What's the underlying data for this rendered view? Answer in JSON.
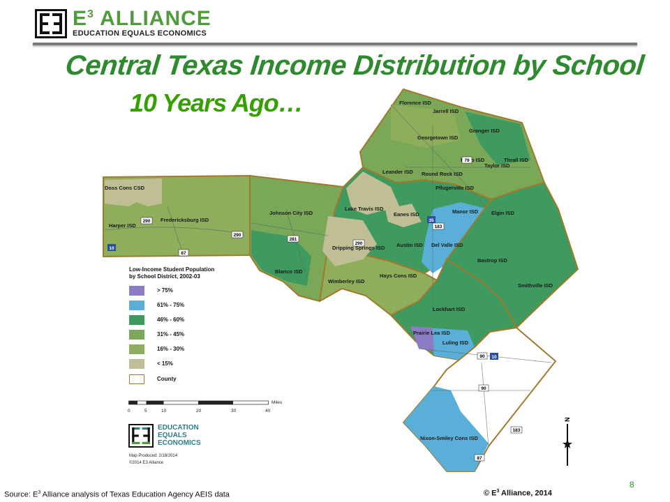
{
  "header": {
    "brand_name": "E3 ALLIANCE",
    "brand_prefix": "E",
    "brand_sup": "3",
    "brand_suffix": " ALLIANCE",
    "tagline": "EDUCATION EQUALS ECONOMICS"
  },
  "slide": {
    "title": "Central Texas Income Distribution by School",
    "subtitle": "10 Years Ago…",
    "page_number": "8"
  },
  "colors": {
    "title": "#2f8a2f",
    "subtitle": "#36a000",
    "over_75": "#8b7cc4",
    "61_75": "#5aafd8",
    "46_60": "#3f9a5f",
    "31_45": "#7aa858",
    "16_30": "#8fae5c",
    "under_15": "#bfbe95",
    "county_border": "#a07a2c"
  },
  "legend": {
    "title_line1": "Low-Income Student Population",
    "title_line2": "by School District, 2002-03",
    "items": [
      {
        "label": "> 75%",
        "color": "#8b7cc4"
      },
      {
        "label": "61% - 75%",
        "color": "#5aafd8"
      },
      {
        "label": "46% - 60%",
        "color": "#3f9a5f"
      },
      {
        "label": "31% - 45%",
        "color": "#7aa858"
      },
      {
        "label": "16% - 30%",
        "color": "#8fae5c"
      },
      {
        "label": "< 15%",
        "color": "#bfbe95"
      },
      {
        "label": "County",
        "color": "#ffffff"
      }
    ],
    "scale_ticks": [
      "0",
      "5",
      "10",
      "20",
      "30",
      "40"
    ],
    "scale_unit": "Miles"
  },
  "map": {
    "districts": [
      "Florence ISD",
      "Jarrell ISD",
      "Granger ISD",
      "Georgetown ISD",
      "Thrall ISD",
      "Hutto ISD",
      "Taylor ISD",
      "Leander ISD",
      "Round Rock ISD",
      "Pflugerville ISD",
      "Doss Cons CSD",
      "Harper ISD",
      "Fredericksburg ISD",
      "Johnson City ISD",
      "Lake Travis ISD",
      "Eanes ISD",
      "Manor ISD",
      "Elgin ISD",
      "Austin ISD",
      "Del Valle ISD",
      "Dripping Springs ISD",
      "Blanco ISD",
      "Bastrop ISD",
      "Wimberley ISD",
      "Hays Cons ISD",
      "Smithville ISD",
      "Lockhart ISD",
      "Prairie Lea ISD",
      "Luling ISD",
      "Nixon-Smiley Cons ISD"
    ],
    "highways": [
      "79",
      "35",
      "183",
      "290",
      "290",
      "281",
      "290",
      "87",
      "10",
      "90",
      "10",
      "90",
      "183",
      "87"
    ]
  },
  "attribution": {
    "eee_line1": "EDUCATION",
    "eee_line2": "EQUALS",
    "eee_line3": "ECONOMICS",
    "map_produced": "Map Produced: 2/18/2014",
    "map_copyright": "©2014 E3 Alliance"
  },
  "footer": {
    "source_prefix": "Source: E",
    "source_sup": "3",
    "source_suffix": " Alliance analysis of Texas Education Agency AEIS data",
    "copyright_prefix": "© E",
    "copyright_sup": "3",
    "copyright_suffix": " Alliance, 2014"
  }
}
